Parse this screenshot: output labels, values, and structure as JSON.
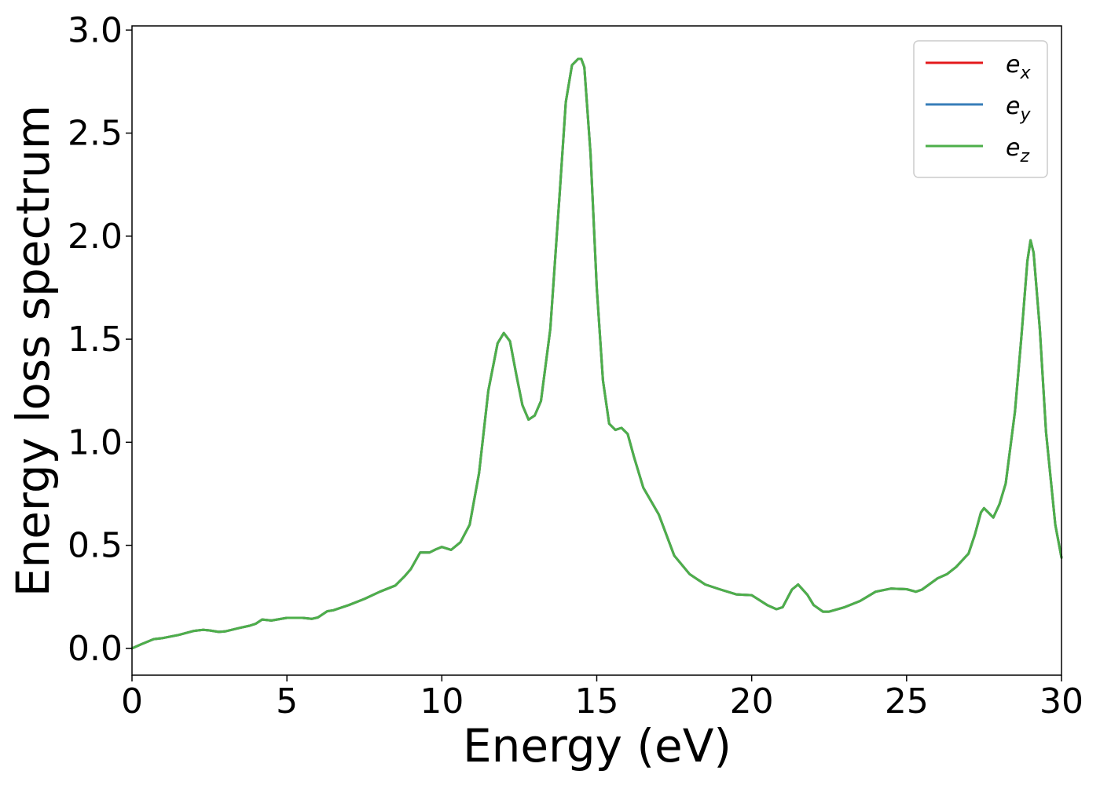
{
  "chart_data": {
    "type": "line",
    "title": "",
    "xlabel": "Energy (eV)",
    "ylabel": "Energy loss spectrum",
    "xlim": [
      0,
      30
    ],
    "ylim": [
      -0.13,
      3.02
    ],
    "xticks": [
      0,
      5,
      10,
      15,
      20,
      25,
      30
    ],
    "xtick_labels": [
      "0",
      "5",
      "10",
      "15",
      "20",
      "25",
      "30"
    ],
    "yticks": [
      0.0,
      0.5,
      1.0,
      1.5,
      2.0,
      2.5,
      3.0
    ],
    "ytick_labels": [
      "0.0",
      "0.5",
      "1.0",
      "1.5",
      "2.0",
      "2.5",
      "3.0"
    ],
    "grid": false,
    "legend_position": "top-right",
    "x": [
      0,
      0.3,
      0.7,
      1.0,
      1.5,
      2.0,
      2.3,
      2.5,
      2.8,
      3.0,
      3.5,
      3.8,
      4.0,
      4.2,
      4.5,
      5.0,
      5.5,
      5.8,
      6.0,
      6.3,
      6.5,
      7.0,
      7.5,
      8.0,
      8.5,
      8.8,
      9.0,
      9.3,
      9.6,
      9.8,
      10.0,
      10.3,
      10.6,
      10.9,
      11.2,
      11.5,
      11.8,
      12.0,
      12.2,
      12.4,
      12.6,
      12.8,
      13.0,
      13.2,
      13.5,
      13.8,
      14.0,
      14.2,
      14.4,
      14.5,
      14.6,
      14.8,
      15.0,
      15.2,
      15.4,
      15.6,
      15.8,
      16.0,
      16.2,
      16.5,
      17.0,
      17.5,
      18.0,
      18.5,
      19.0,
      19.5,
      20.0,
      20.5,
      20.8,
      21.0,
      21.3,
      21.5,
      21.8,
      22.0,
      22.3,
      22.5,
      23.0,
      23.5,
      24.0,
      24.5,
      25.0,
      25.3,
      25.5,
      26.0,
      26.3,
      26.6,
      27.0,
      27.2,
      27.4,
      27.5,
      27.6,
      27.8,
      28.0,
      28.2,
      28.5,
      28.7,
      28.9,
      29.0,
      29.1,
      29.3,
      29.5,
      29.8,
      30.0
    ],
    "series": [
      {
        "name": "e_x",
        "color": "#e41a1c",
        "values": [
          0.0,
          0.02,
          0.045,
          0.05,
          0.065,
          0.085,
          0.09,
          0.087,
          0.08,
          0.082,
          0.1,
          0.11,
          0.12,
          0.14,
          0.135,
          0.148,
          0.148,
          0.143,
          0.15,
          0.18,
          0.185,
          0.21,
          0.24,
          0.275,
          0.305,
          0.35,
          0.385,
          0.465,
          0.465,
          0.48,
          0.492,
          0.478,
          0.515,
          0.6,
          0.85,
          1.25,
          1.48,
          1.53,
          1.49,
          1.33,
          1.18,
          1.11,
          1.13,
          1.2,
          1.55,
          2.2,
          2.65,
          2.83,
          2.86,
          2.86,
          2.82,
          2.4,
          1.75,
          1.3,
          1.09,
          1.06,
          1.07,
          1.04,
          0.93,
          0.78,
          0.65,
          0.45,
          0.36,
          0.31,
          0.285,
          0.262,
          0.258,
          0.21,
          0.19,
          0.2,
          0.285,
          0.31,
          0.26,
          0.21,
          0.178,
          0.178,
          0.2,
          0.23,
          0.275,
          0.29,
          0.287,
          0.275,
          0.285,
          0.34,
          0.36,
          0.395,
          0.46,
          0.55,
          0.66,
          0.68,
          0.665,
          0.635,
          0.7,
          0.8,
          1.15,
          1.5,
          1.88,
          1.98,
          1.92,
          1.55,
          1.05,
          0.6,
          0.44
        ]
      },
      {
        "name": "e_y",
        "color": "#377eb8",
        "values": [
          0.0,
          0.02,
          0.045,
          0.05,
          0.065,
          0.085,
          0.09,
          0.087,
          0.08,
          0.082,
          0.1,
          0.11,
          0.12,
          0.14,
          0.135,
          0.148,
          0.148,
          0.143,
          0.15,
          0.18,
          0.185,
          0.21,
          0.24,
          0.275,
          0.305,
          0.35,
          0.385,
          0.465,
          0.465,
          0.48,
          0.492,
          0.478,
          0.515,
          0.6,
          0.85,
          1.25,
          1.48,
          1.53,
          1.49,
          1.33,
          1.18,
          1.11,
          1.13,
          1.2,
          1.55,
          2.2,
          2.65,
          2.83,
          2.86,
          2.86,
          2.82,
          2.4,
          1.75,
          1.3,
          1.09,
          1.06,
          1.07,
          1.04,
          0.93,
          0.78,
          0.65,
          0.45,
          0.36,
          0.31,
          0.285,
          0.262,
          0.258,
          0.21,
          0.19,
          0.2,
          0.285,
          0.31,
          0.26,
          0.21,
          0.178,
          0.178,
          0.2,
          0.23,
          0.275,
          0.29,
          0.287,
          0.275,
          0.285,
          0.34,
          0.36,
          0.395,
          0.46,
          0.55,
          0.66,
          0.68,
          0.665,
          0.635,
          0.7,
          0.8,
          1.15,
          1.5,
          1.88,
          1.98,
          1.92,
          1.55,
          1.05,
          0.6,
          0.44
        ]
      },
      {
        "name": "e_z",
        "color": "#4daf4a",
        "values": [
          0.0,
          0.02,
          0.045,
          0.05,
          0.065,
          0.085,
          0.09,
          0.087,
          0.08,
          0.082,
          0.1,
          0.11,
          0.12,
          0.14,
          0.135,
          0.148,
          0.148,
          0.143,
          0.15,
          0.18,
          0.185,
          0.21,
          0.24,
          0.275,
          0.305,
          0.35,
          0.385,
          0.465,
          0.465,
          0.48,
          0.492,
          0.478,
          0.515,
          0.6,
          0.85,
          1.25,
          1.48,
          1.53,
          1.49,
          1.33,
          1.18,
          1.11,
          1.13,
          1.2,
          1.55,
          2.2,
          2.65,
          2.83,
          2.86,
          2.86,
          2.82,
          2.4,
          1.75,
          1.3,
          1.09,
          1.06,
          1.07,
          1.04,
          0.93,
          0.78,
          0.65,
          0.45,
          0.36,
          0.31,
          0.285,
          0.262,
          0.258,
          0.21,
          0.19,
          0.2,
          0.285,
          0.31,
          0.26,
          0.21,
          0.178,
          0.178,
          0.2,
          0.23,
          0.275,
          0.29,
          0.287,
          0.275,
          0.285,
          0.34,
          0.36,
          0.395,
          0.46,
          0.55,
          0.66,
          0.68,
          0.665,
          0.635,
          0.7,
          0.8,
          1.15,
          1.5,
          1.88,
          1.98,
          1.92,
          1.55,
          1.05,
          0.6,
          0.44
        ]
      }
    ],
    "legend": [
      {
        "base": "e",
        "sub": "x",
        "color": "#e41a1c"
      },
      {
        "base": "e",
        "sub": "y",
        "color": "#377eb8"
      },
      {
        "base": "e",
        "sub": "z",
        "color": "#4daf4a"
      }
    ]
  }
}
